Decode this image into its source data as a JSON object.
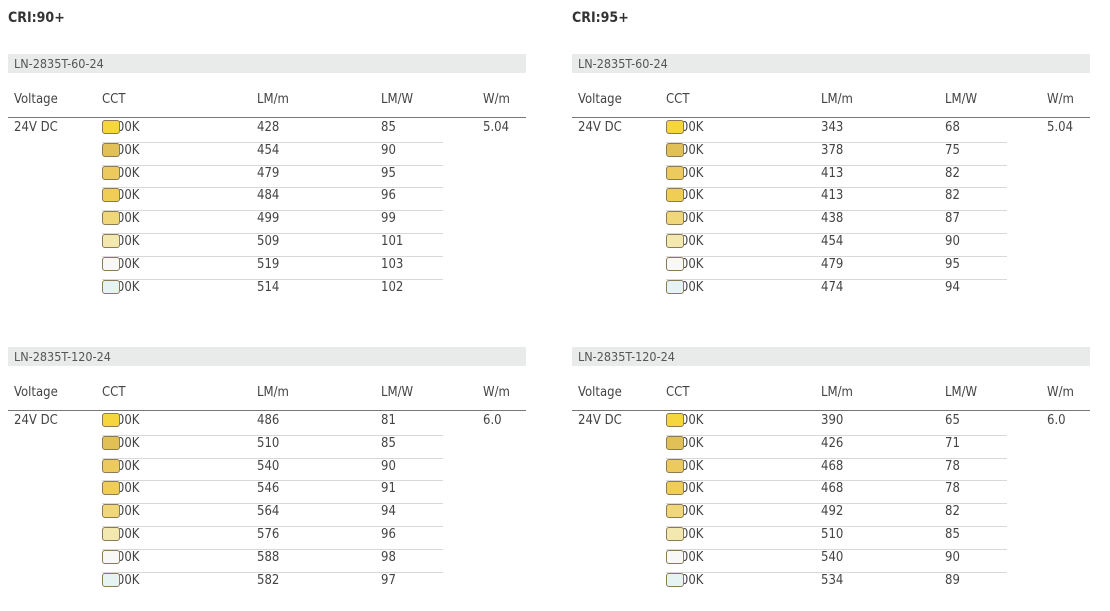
{
  "sections": [
    {
      "title": "CRI:90+",
      "tables": [
        {
          "model": "LN-2835T-60-24",
          "voltage": "24V DC",
          "wm": "5.04",
          "rows": [
            [
              "2200K",
              "428",
              "85"
            ],
            [
              "2500K",
              "454",
              "90"
            ],
            [
              "2700K",
              "479",
              "95"
            ],
            [
              "3000K",
              "484",
              "96"
            ],
            [
              "3500K",
              "499",
              "99"
            ],
            [
              "4000K",
              "509",
              "101"
            ],
            [
              "5000K",
              "519",
              "103"
            ],
            [
              "6200K",
              "514",
              "102"
            ]
          ]
        },
        {
          "model": "LN-2835T-120-24",
          "voltage": "24V DC",
          "wm": "6.0",
          "rows": [
            [
              "2200K",
              "486",
              "81"
            ],
            [
              "2500K",
              "510",
              "85"
            ],
            [
              "2700K",
              "540",
              "90"
            ],
            [
              "3000K",
              "546",
              "91"
            ],
            [
              "3500K",
              "564",
              "94"
            ],
            [
              "4000K",
              "576",
              "96"
            ],
            [
              "5000K",
              "588",
              "98"
            ],
            [
              "6200K",
              "582",
              "97"
            ]
          ]
        }
      ]
    },
    {
      "title": "CRI:95+",
      "tables": [
        {
          "model": "LN-2835T-60-24",
          "voltage": "24V DC",
          "wm": "5.04",
          "rows": [
            [
              "2200K",
              "343",
              "68"
            ],
            [
              "2500K",
              "378",
              "75"
            ],
            [
              "2700K",
              "413",
              "82"
            ],
            [
              "3000K",
              "413",
              "82"
            ],
            [
              "3500K",
              "438",
              "87"
            ],
            [
              "4000K",
              "454",
              "90"
            ],
            [
              "5000K",
              "479",
              "95"
            ],
            [
              "6200K",
              "474",
              "94"
            ]
          ]
        },
        {
          "model": "LN-2835T-120-24",
          "voltage": "24V DC",
          "wm": "6.0",
          "rows": [
            [
              "2200K",
              "390",
              "65"
            ],
            [
              "2500K",
              "426",
              "71"
            ],
            [
              "2700K",
              "468",
              "78"
            ],
            [
              "3000K",
              "468",
              "78"
            ],
            [
              "3500K",
              "492",
              "82"
            ],
            [
              "4000K",
              "510",
              "85"
            ],
            [
              "5000K",
              "540",
              "90"
            ],
            [
              "6200K",
              "534",
              "89"
            ]
          ]
        }
      ]
    }
  ],
  "headers": [
    "Voltage",
    "CCT",
    "LM/m",
    "LM/W",
    "W/m"
  ],
  "swatch_colors": {
    "2200K": "#f5d63d",
    "2500K": "#e2c058",
    "2700K": "#ecca5e",
    "3000K": "#f0cd55",
    "3500K": "#efd77a",
    "4000K": "#f3e8b0",
    "5000K": "#f8f8f6",
    "6200K": "#e6f3f3"
  }
}
